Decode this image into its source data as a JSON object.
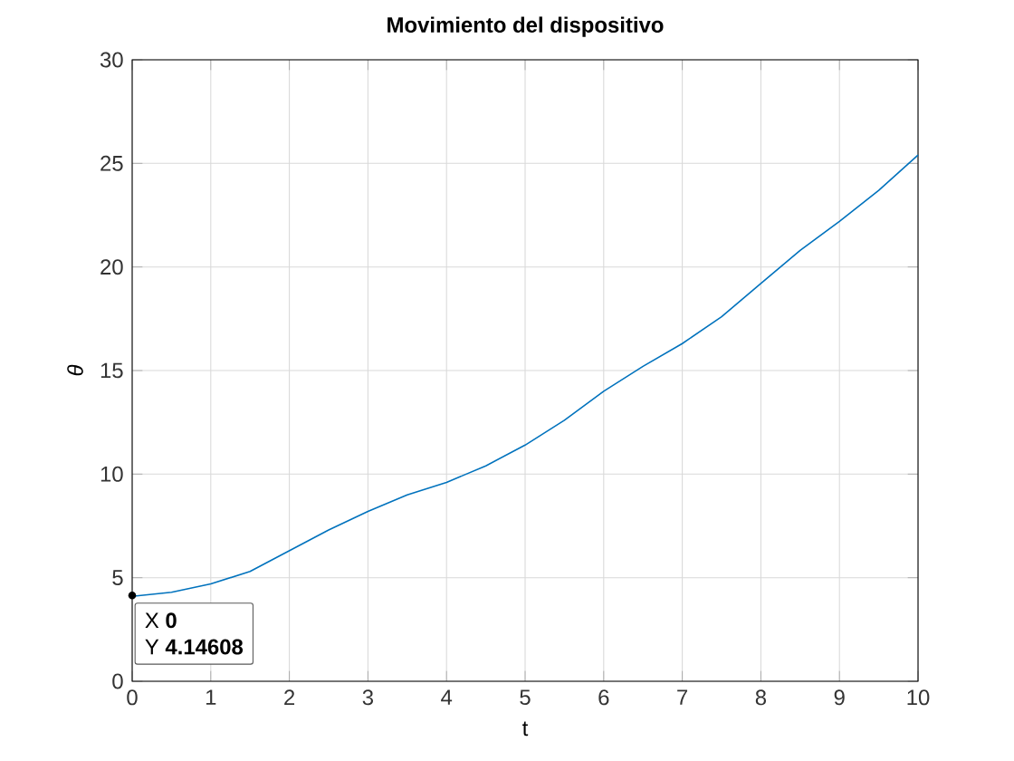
{
  "chart_data": {
    "type": "line",
    "title": "Movimiento del dispositivo",
    "xlabel": "t",
    "ylabel": "θ",
    "x": [
      0,
      0.5,
      1,
      1.5,
      2,
      2.5,
      3,
      3.5,
      4,
      4.5,
      5,
      5.5,
      6,
      6.5,
      7,
      7.5,
      8,
      8.5,
      9,
      9.5,
      10
    ],
    "series": [
      {
        "color": "#0072bd",
        "values": [
          4.1,
          4.3,
          4.7,
          5.3,
          6.3,
          7.3,
          8.2,
          9.0,
          9.6,
          10.4,
          11.4,
          12.6,
          14.0,
          15.2,
          16.3,
          17.6,
          19.2,
          20.8,
          22.2,
          23.7,
          25.4
        ]
      }
    ],
    "xlim": [
      0,
      10
    ],
    "ylim": [
      0,
      30
    ],
    "xticks": [
      0,
      1,
      2,
      3,
      4,
      5,
      6,
      7,
      8,
      9,
      10
    ],
    "yticks": [
      0,
      5,
      10,
      15,
      20,
      25,
      30
    ],
    "grid": true,
    "marker": "none",
    "line_style": "solid",
    "annotations": [
      {
        "text": "X **0**",
        "x": 0,
        "y": 4.14608
      },
      "Y **4.14608**"
    ]
  }
}
